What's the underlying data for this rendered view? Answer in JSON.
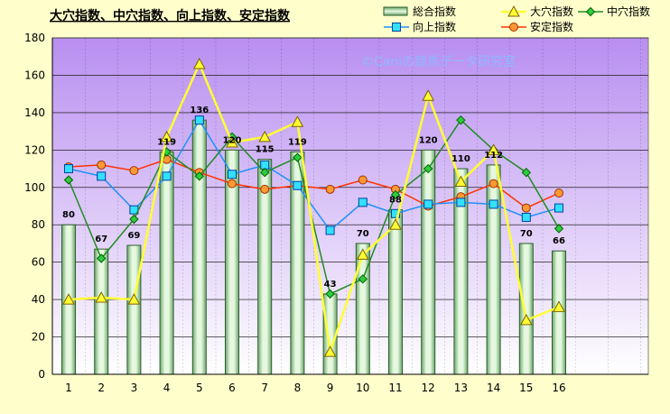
{
  "chart_data": {
    "type": "bar",
    "title": "大穴指数、中穴指数、向上指数、安定指数",
    "watermark": "©Caniの競馬データ研究室",
    "categories": [
      "1",
      "2",
      "3",
      "4",
      "5",
      "6",
      "7",
      "8",
      "9",
      "10",
      "11",
      "12",
      "13",
      "14",
      "15",
      "16"
    ],
    "ylim": [
      0,
      180
    ],
    "y_ticks": [
      "0",
      "20",
      "40",
      "60",
      "80",
      "100",
      "120",
      "140",
      "160",
      "180"
    ],
    "grid": true,
    "legend_position": "top-right",
    "colors": {
      "plot_bg_top": "#b88ef0",
      "plot_bg_bottom": "#ffffff",
      "page_bg": "#ffffcc",
      "bar_fill": "#c8ecc0",
      "bar_edge": "#2e5e2e",
      "daiana": "#ffff33",
      "chuuana": "#228b22",
      "koujou": "#1e90ff",
      "antei": "#ff3300"
    },
    "series": [
      {
        "name": "総合指数",
        "kind": "bar",
        "values": [
          80,
          67,
          69,
          119,
          136,
          120,
          115,
          119,
          43,
          70,
          88,
          120,
          110,
          112,
          70,
          66
        ],
        "labels": [
          "80",
          "67",
          "69",
          "119",
          "136",
          "120",
          "115",
          "119",
          "43",
          "70",
          "88",
          "120",
          "110",
          "112",
          "70",
          "66"
        ]
      },
      {
        "name": "大穴指数",
        "kind": "line",
        "marker": "triangle",
        "values": [
          40,
          41,
          40,
          127,
          166,
          124,
          127,
          135,
          12,
          64,
          80,
          149,
          103,
          120,
          29,
          36
        ]
      },
      {
        "name": "中穴指数",
        "kind": "line",
        "marker": "diamond",
        "values": [
          104,
          62,
          83,
          119,
          106,
          127,
          108,
          116,
          43,
          51,
          96,
          110,
          136,
          120,
          108,
          78
        ]
      },
      {
        "name": "向上指数",
        "kind": "line",
        "marker": "square",
        "values": [
          110,
          106,
          88,
          106,
          136,
          107,
          112,
          101,
          77,
          92,
          86,
          91,
          92,
          91,
          84,
          89
        ]
      },
      {
        "name": "安定指数",
        "kind": "line",
        "marker": "circle",
        "values": [
          111,
          112,
          109,
          115,
          108,
          102,
          99,
          101,
          99,
          104,
          99,
          90,
          95,
          102,
          89,
          97
        ]
      }
    ]
  }
}
